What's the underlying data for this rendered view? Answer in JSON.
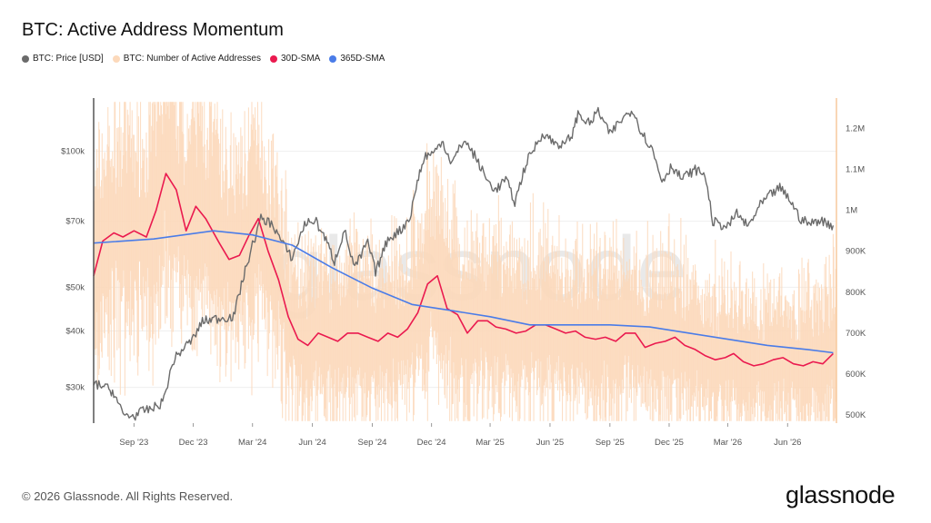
{
  "header": {
    "title": "BTC: Active Address Momentum"
  },
  "legend": [
    {
      "label": "BTC: Price [USD]",
      "color": "#6b6b6b"
    },
    {
      "label": "BTC: Number of Active Addresses",
      "color": "#fcd9bb"
    },
    {
      "label": "30D-SMA",
      "color": "#ea1a4f"
    },
    {
      "label": "365D-SMA",
      "color": "#4a7ce8"
    }
  ],
  "footer": {
    "copyright": "© 2026 Glassnode. All Rights Reserved.",
    "brand": "glassnode"
  },
  "watermark": "glassnode",
  "chart_data": {
    "type": "line",
    "title": "BTC: Active Address Momentum",
    "x_range": [
      "2023-07-01",
      "2026-08-15"
    ],
    "x_ticks": [
      "Sep '23",
      "Dec '23",
      "Mar '24",
      "Jun '24",
      "Sep '24",
      "Dec '24",
      "Mar '25",
      "Jun '25",
      "Sep '25",
      "Dec '25",
      "Mar '26",
      "Jun '26"
    ],
    "y_left": {
      "scale": "log",
      "range": [
        25000,
        130000
      ],
      "ticks": [
        30000,
        40000,
        50000,
        70000,
        100000
      ],
      "tick_labels": [
        "$30k",
        "$40k",
        "$50k",
        "$70k",
        "$100k"
      ]
    },
    "y_right": {
      "scale": "linear",
      "range": [
        480000,
        1270000
      ],
      "ticks": [
        500000,
        600000,
        700000,
        800000,
        900000,
        1000000,
        1100000,
        1200000
      ],
      "tick_labels": [
        "500K",
        "600K",
        "700K",
        "800K",
        "900K",
        "1M",
        "1.1M",
        "1.2M"
      ]
    },
    "grid": true,
    "series": [
      {
        "name": "BTC: Price [USD]",
        "axis": "left",
        "color": "#6b6b6b",
        "x": [
          "2023-07-01",
          "2023-07-15",
          "2023-08-01",
          "2023-08-15",
          "2023-09-01",
          "2023-09-15",
          "2023-10-01",
          "2023-10-15",
          "2023-11-01",
          "2023-11-15",
          "2023-12-01",
          "2023-12-15",
          "2024-01-01",
          "2024-01-15",
          "2024-02-01",
          "2024-02-15",
          "2024-03-01",
          "2024-03-14",
          "2024-04-01",
          "2024-04-15",
          "2024-05-01",
          "2024-05-20",
          "2024-06-05",
          "2024-06-20",
          "2024-07-05",
          "2024-07-20",
          "2024-08-05",
          "2024-08-25",
          "2024-09-06",
          "2024-09-25",
          "2024-10-15",
          "2024-10-29",
          "2024-11-11",
          "2024-11-22",
          "2024-12-05",
          "2024-12-17",
          "2025-01-01",
          "2025-01-20",
          "2025-02-05",
          "2025-02-25",
          "2025-03-10",
          "2025-03-25",
          "2025-04-08",
          "2025-04-25",
          "2025-05-10",
          "2025-05-22",
          "2025-06-05",
          "2025-06-22",
          "2025-07-05",
          "2025-07-14",
          "2025-08-01",
          "2025-08-14",
          "2025-09-01",
          "2025-09-15",
          "2025-10-06",
          "2025-10-20",
          "2025-11-05",
          "2025-11-20",
          "2025-12-05",
          "2025-12-20",
          "2026-01-10",
          "2026-01-25",
          "2026-02-06",
          "2026-02-15",
          "2026-03-01",
          "2026-03-15",
          "2026-04-01",
          "2026-04-20",
          "2026-05-05",
          "2026-05-20",
          "2026-06-05",
          "2026-06-20",
          "2026-07-05",
          "2026-07-20",
          "2026-08-10"
        ],
        "values": [
          30500,
          30300,
          29200,
          26100,
          25900,
          26600,
          27000,
          27800,
          34500,
          36500,
          38500,
          42000,
          42500,
          42800,
          43000,
          52000,
          62000,
          71000,
          69000,
          63000,
          58000,
          69000,
          70500,
          64500,
          57000,
          67000,
          55000,
          63000,
          54000,
          64000,
          67000,
          71500,
          88000,
          98000,
          99000,
          106000,
          94000,
          106000,
          98000,
          86000,
          82000,
          87000,
          77000,
          94000,
          103000,
          110000,
          105000,
          103000,
          109000,
          121000,
          115000,
          123000,
          109000,
          116000,
          124000,
          110000,
          101000,
          86000,
          93000,
          87000,
          91000,
          89000,
          70000,
          69000,
          68000,
          73000,
          68000,
          76000,
          80000,
          83000,
          78000,
          71000,
          69000,
          70500,
          68500
        ]
      },
      {
        "name": "30D-SMA",
        "axis": "right",
        "color": "#ea1a4f",
        "x": [
          "2023-07-01",
          "2023-07-15",
          "2023-08-01",
          "2023-08-15",
          "2023-09-01",
          "2023-09-20",
          "2023-10-05",
          "2023-10-20",
          "2023-11-05",
          "2023-11-20",
          "2023-12-05",
          "2023-12-20",
          "2024-01-10",
          "2024-01-25",
          "2024-02-10",
          "2024-02-25",
          "2024-03-10",
          "2024-03-25",
          "2024-04-10",
          "2024-04-25",
          "2024-05-10",
          "2024-05-25",
          "2024-06-10",
          "2024-06-25",
          "2024-07-10",
          "2024-07-25",
          "2024-08-10",
          "2024-08-25",
          "2024-09-10",
          "2024-09-25",
          "2024-10-10",
          "2024-10-25",
          "2024-11-10",
          "2024-11-25",
          "2024-12-10",
          "2024-12-25",
          "2025-01-10",
          "2025-01-25",
          "2025-02-10",
          "2025-02-25",
          "2025-03-10",
          "2025-03-25",
          "2025-04-10",
          "2025-04-25",
          "2025-05-10",
          "2025-05-25",
          "2025-06-10",
          "2025-06-25",
          "2025-07-10",
          "2025-07-25",
          "2025-08-10",
          "2025-08-25",
          "2025-09-10",
          "2025-09-25",
          "2025-10-10",
          "2025-10-25",
          "2025-11-10",
          "2025-11-25",
          "2025-12-10",
          "2025-12-25",
          "2026-01-10",
          "2026-01-25",
          "2026-02-10",
          "2026-02-25",
          "2026-03-10",
          "2026-03-25",
          "2026-04-10",
          "2026-04-25",
          "2026-05-10",
          "2026-05-25",
          "2026-06-10",
          "2026-06-25",
          "2026-07-10",
          "2026-07-25",
          "2026-08-10"
        ],
        "values": [
          840000,
          925000,
          945000,
          935000,
          950000,
          935000,
          1000000,
          1090000,
          1050000,
          950000,
          1010000,
          980000,
          920000,
          880000,
          890000,
          940000,
          980000,
          900000,
          830000,
          740000,
          685000,
          670000,
          700000,
          690000,
          680000,
          700000,
          700000,
          690000,
          680000,
          700000,
          690000,
          710000,
          750000,
          820000,
          840000,
          760000,
          745000,
          700000,
          730000,
          730000,
          715000,
          710000,
          700000,
          705000,
          720000,
          720000,
          710000,
          700000,
          705000,
          690000,
          685000,
          690000,
          680000,
          700000,
          700000,
          665000,
          675000,
          680000,
          690000,
          670000,
          660000,
          645000,
          635000,
          640000,
          650000,
          630000,
          620000,
          625000,
          635000,
          640000,
          625000,
          620000,
          630000,
          625000,
          650000
        ]
      },
      {
        "name": "365D-SMA",
        "axis": "right",
        "color": "#4a7ce8",
        "x": [
          "2023-07-01",
          "2023-10-01",
          "2024-01-01",
          "2024-03-01",
          "2024-05-01",
          "2024-07-01",
          "2024-09-01",
          "2024-11-01",
          "2025-01-01",
          "2025-03-01",
          "2025-05-01",
          "2025-07-01",
          "2025-09-01",
          "2025-11-01",
          "2026-01-01",
          "2026-03-01",
          "2026-05-01",
          "2026-07-01",
          "2026-08-10"
        ],
        "values": [
          920000,
          930000,
          950000,
          940000,
          915000,
          860000,
          810000,
          770000,
          755000,
          740000,
          720000,
          720000,
          720000,
          715000,
          700000,
          685000,
          670000,
          660000,
          652000
        ]
      }
    ],
    "bars": {
      "name": "BTC: Number of Active Addresses",
      "axis": "right",
      "color": "#fcd9bb",
      "description": "daily values oscillating roughly between 500K and 1.2M"
    }
  }
}
